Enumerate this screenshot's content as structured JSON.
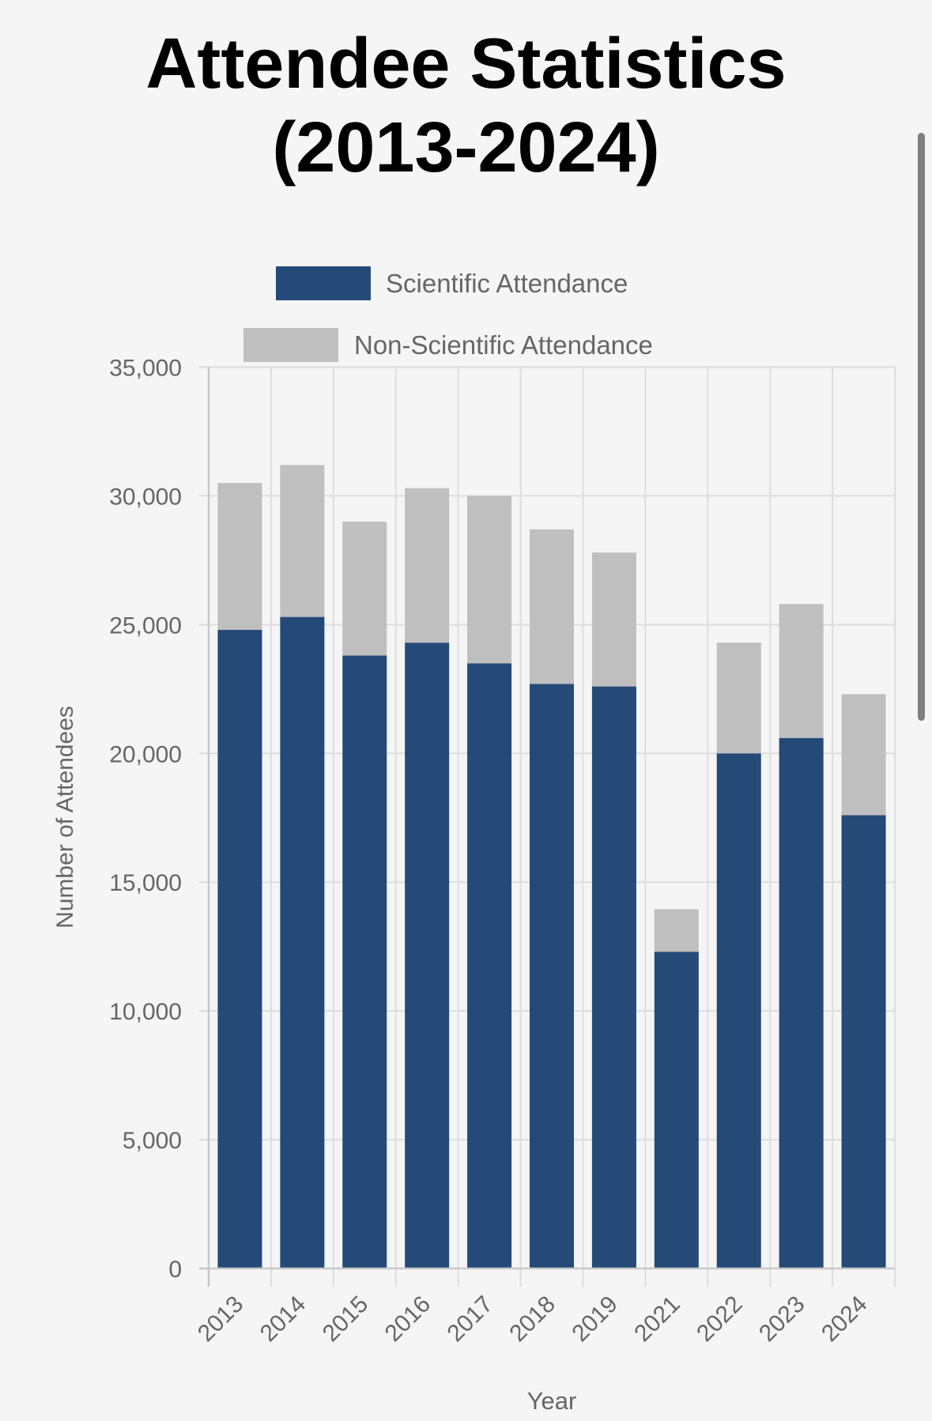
{
  "chart_data": {
    "type": "bar",
    "stacked": true,
    "title": "Attendee Statistics (2013-2024)",
    "title_lines": [
      "Attendee Statistics",
      "(2013-2024)"
    ],
    "xlabel": "Year",
    "ylabel": "Number of Attendees",
    "ylim": [
      0,
      35000
    ],
    "yticks": [
      0,
      5000,
      10000,
      15000,
      20000,
      25000,
      30000,
      35000
    ],
    "ytick_labels": [
      "0",
      "5,000",
      "10,000",
      "15,000",
      "20,000",
      "25,000",
      "30,000",
      "35,000"
    ],
    "grid": true,
    "legend_position": "top-center",
    "categories": [
      "2013",
      "2014",
      "2015",
      "2016",
      "2017",
      "2018",
      "2019",
      "2021",
      "2022",
      "2023",
      "2024"
    ],
    "series": [
      {
        "name": "Scientific Attendance",
        "color": "#254a78",
        "values": [
          24800,
          25300,
          23800,
          24300,
          23500,
          22700,
          22600,
          12300,
          20000,
          20600,
          17600
        ]
      },
      {
        "name": "Non-Scientific Attendance",
        "color": "#bfbfbf",
        "values": [
          5700,
          5900,
          5200,
          6000,
          6500,
          6000,
          5200,
          1650,
          4300,
          5200,
          4700
        ]
      }
    ],
    "totals": [
      30500,
      31200,
      29000,
      30300,
      30000,
      28700,
      27800,
      13950,
      24300,
      25800,
      22300
    ]
  },
  "colors": {
    "background": "#f5f5f5",
    "grid": "#dddddd",
    "axis": "#c8c8c8",
    "text": "#666666",
    "title": "#000000"
  }
}
